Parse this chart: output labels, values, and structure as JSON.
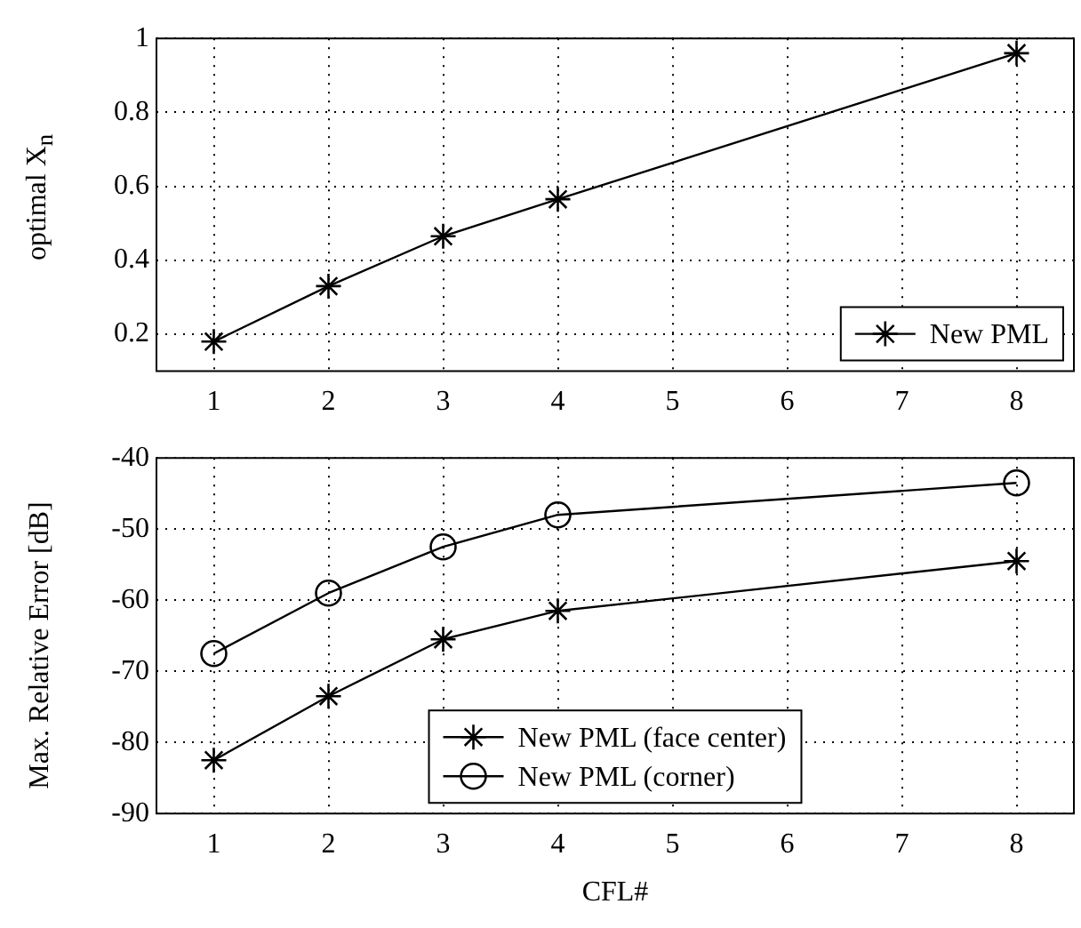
{
  "chart_data": [
    {
      "type": "line",
      "ylabel": "optimal X$_{n}$",
      "x": [
        1,
        2,
        3,
        4,
        8
      ],
      "xlim": [
        0.5,
        8.5
      ],
      "xticks": [
        1,
        2,
        3,
        4,
        5,
        6,
        7,
        8
      ],
      "ylim": [
        0.1,
        1
      ],
      "yticks": [
        0.2,
        0.4,
        0.6,
        0.8,
        1
      ],
      "grid": true,
      "legend": "bottom right",
      "series": [
        {
          "name": "New PML",
          "color": "#000000",
          "marker": "cross",
          "values": [
            0.18,
            0.33,
            0.465,
            0.565,
            0.96
          ]
        }
      ]
    },
    {
      "type": "line",
      "xlabel": "CFL#",
      "ylabel": "Max. Relative Error [dB]",
      "x": [
        1,
        2,
        3,
        4,
        8
      ],
      "xlim": [
        0.5,
        8.5
      ],
      "xticks": [
        1,
        2,
        3,
        4,
        5,
        6,
        7,
        8
      ],
      "ylim": [
        -90,
        -40
      ],
      "yticks": [
        -90,
        -80,
        -70,
        -60,
        -50,
        -40
      ],
      "grid": true,
      "legend": "bottom",
      "series": [
        {
          "name": "New PML (face center)",
          "color": "#000000",
          "marker": "cross",
          "values": [
            -82.5,
            -73.5,
            -65.5,
            -61.5,
            -54.5
          ]
        },
        {
          "name": "New PML (corner)",
          "color": "#000000",
          "marker": "circle",
          "values": [
            -67.5,
            -59,
            -52.5,
            -48,
            -43.5
          ]
        }
      ]
    }
  ]
}
